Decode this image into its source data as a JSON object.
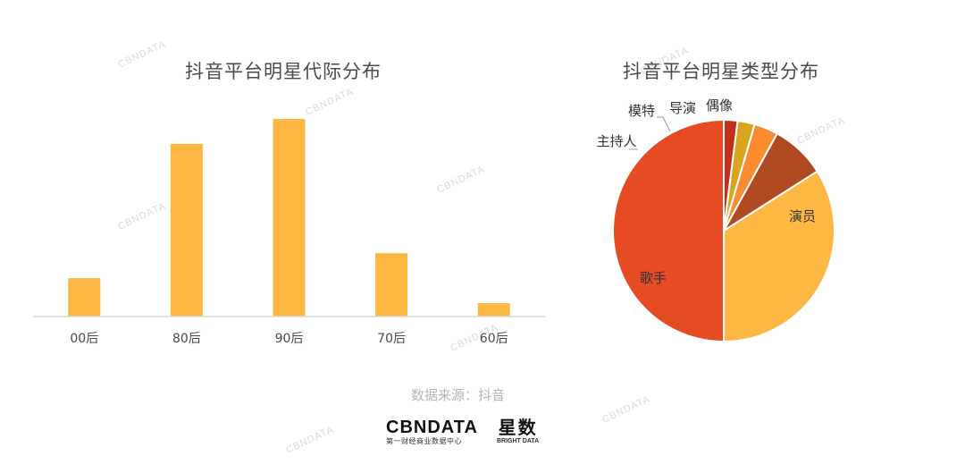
{
  "chart_data": [
    {
      "type": "bar",
      "title": "抖音平台明星代际分布",
      "categories": [
        "00后",
        "80后",
        "90后",
        "70后",
        "60后"
      ],
      "values": [
        10,
        45,
        51.5,
        16.5,
        3.5
      ],
      "ylim": [
        0,
        55
      ],
      "grid": false,
      "color": "#FDB843",
      "axis_color": "#D9D9D9"
    },
    {
      "type": "pie",
      "title": "抖音平台明星类型分布",
      "labels": [
        "演员",
        "歌手",
        "主持人",
        "模特",
        "导演",
        "偶像"
      ],
      "values": [
        50,
        34,
        8,
        3.5,
        2.5,
        2
      ],
      "colors": [
        "#E64C23",
        "#FDB843",
        "#B04A22",
        "#F98C2E",
        "#D9A521",
        "#C0301B"
      ],
      "grid": false
    }
  ],
  "footer": {
    "source": "数据来源：抖音",
    "logo_cbn": "CBNDATA",
    "logo_cbn_sub": "第一财经商业数据中心",
    "logo_xs": "星数",
    "logo_xs_sub": "BRIGHT DATA"
  },
  "watermark": {
    "text": "CBNDATA"
  }
}
